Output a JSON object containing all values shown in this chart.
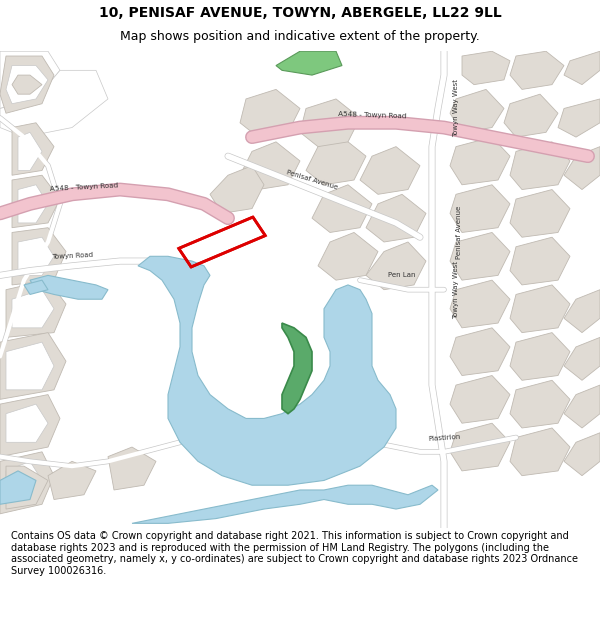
{
  "title_line1": "10, PENISAF AVENUE, TOWYN, ABERGELE, LL22 9LL",
  "title_line2": "Map shows position and indicative extent of the property.",
  "footer": "Contains OS data © Crown copyright and database right 2021. This information is subject to Crown copyright and database rights 2023 and is reproduced with the permission of HM Land Registry. The polygons (including the associated geometry, namely x, y co-ordinates) are subject to Crown copyright and database rights 2023 Ordnance Survey 100026316.",
  "bg_color": "#f5f3f0",
  "road_fill": "#ffffff",
  "road_edge": "#c8c8c8",
  "pink_road_fill": "#f2c4ce",
  "pink_road_edge": "#d4a0b0",
  "blue_color": "#aed6e8",
  "green_color": "#5aaa6a",
  "bldg_fill": "#e0dbd4",
  "bldg_edge": "#c0bab2",
  "red_color": "#dd0000",
  "white": "#ffffff",
  "header_bg": "#ffffff",
  "footer_bg": "#ffffff"
}
